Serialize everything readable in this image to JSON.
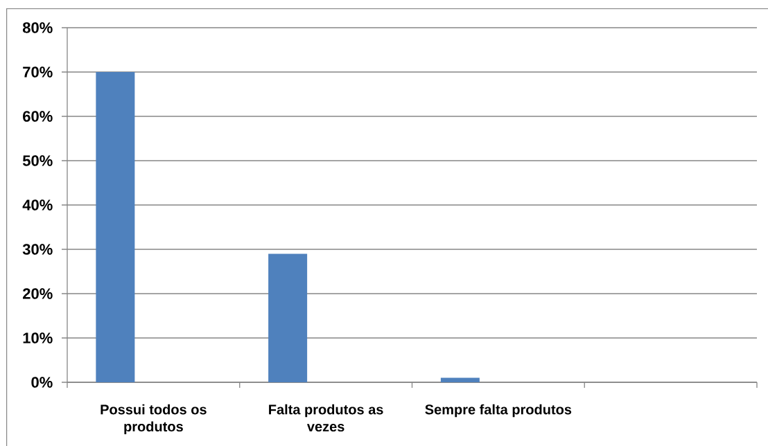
{
  "chart_data": {
    "type": "bar",
    "categories": [
      "Possui todos os produtos",
      "Falta produtos as vezes",
      "Sempre falta produtos",
      null
    ],
    "values": [
      70,
      29,
      1,
      null
    ],
    "color": "#4f81bd",
    "ylim": [
      0,
      80
    ],
    "yticks": [
      {
        "value": 0,
        "label": "0%"
      },
      {
        "value": 10,
        "label": "10%"
      },
      {
        "value": 20,
        "label": "20%"
      },
      {
        "value": 30,
        "label": "30%"
      },
      {
        "value": 40,
        "label": "40%"
      },
      {
        "value": 50,
        "label": "50%"
      },
      {
        "value": 60,
        "label": "60%"
      },
      {
        "value": 70,
        "label": "70%"
      },
      {
        "value": 80,
        "label": "80%"
      }
    ],
    "grid": "y"
  }
}
